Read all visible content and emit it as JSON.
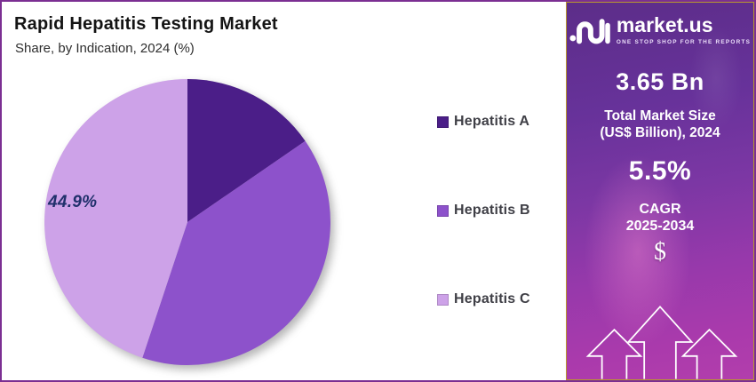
{
  "page": {
    "border_color": "#7b2f92"
  },
  "header": {
    "title": "Rapid Hepatitis Testing Market",
    "subtitle": "Share, by Indication, 2024 (%)"
  },
  "chart_data": {
    "type": "pie",
    "title": "Rapid Hepatitis Testing Market",
    "subtitle": "Share, by Indication, 2024 (%)",
    "unit": "%",
    "categories": [
      "Hepatitis A",
      "Hepatitis B",
      "Hepatitis C"
    ],
    "values": [
      15.4,
      39.7,
      44.9
    ],
    "colors": [
      "#4b1e88",
      "#8d52cb",
      "#cda2e8"
    ],
    "start_angle": "top",
    "direction": "clockwise",
    "legend_position": "right",
    "data_label": {
      "category": "Hepatitis C",
      "text": "44.9%",
      "color": "#20306b"
    }
  },
  "sidebar": {
    "logo": {
      "brand": "market.us",
      "tagline": "ONE STOP SHOP FOR THE REPORTS"
    },
    "stats": [
      {
        "value": "3.65 Bn",
        "label_lines": [
          "Total Market Size",
          "(US$ Billion), 2024"
        ]
      },
      {
        "value": "5.5%",
        "label_lines": [
          "CAGR",
          "2025-2034"
        ]
      }
    ],
    "dollar_symbol": "$",
    "colors": {
      "gradient_top": "#5c2d89",
      "gradient_bottom": "#b23eac",
      "border": "#b9972f"
    }
  }
}
